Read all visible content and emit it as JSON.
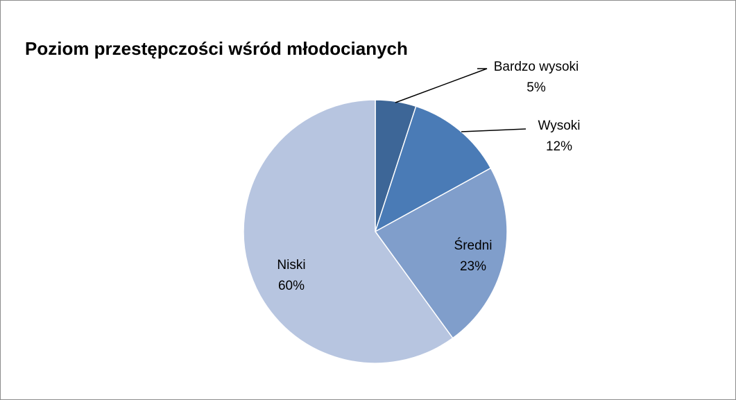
{
  "chart_data": {
    "type": "pie",
    "title": "Poziom przestępczości wśród młodocianych",
    "categories": [
      "Bardzo wysoki",
      "Wysoki",
      "Średni",
      "Niski"
    ],
    "values": [
      5,
      12,
      23,
      60
    ],
    "value_labels": [
      "5%",
      "12%",
      "23%",
      "60%"
    ],
    "colors": [
      "#3d6697",
      "#4a7bb6",
      "#809ecb",
      "#b7c5e0"
    ]
  }
}
